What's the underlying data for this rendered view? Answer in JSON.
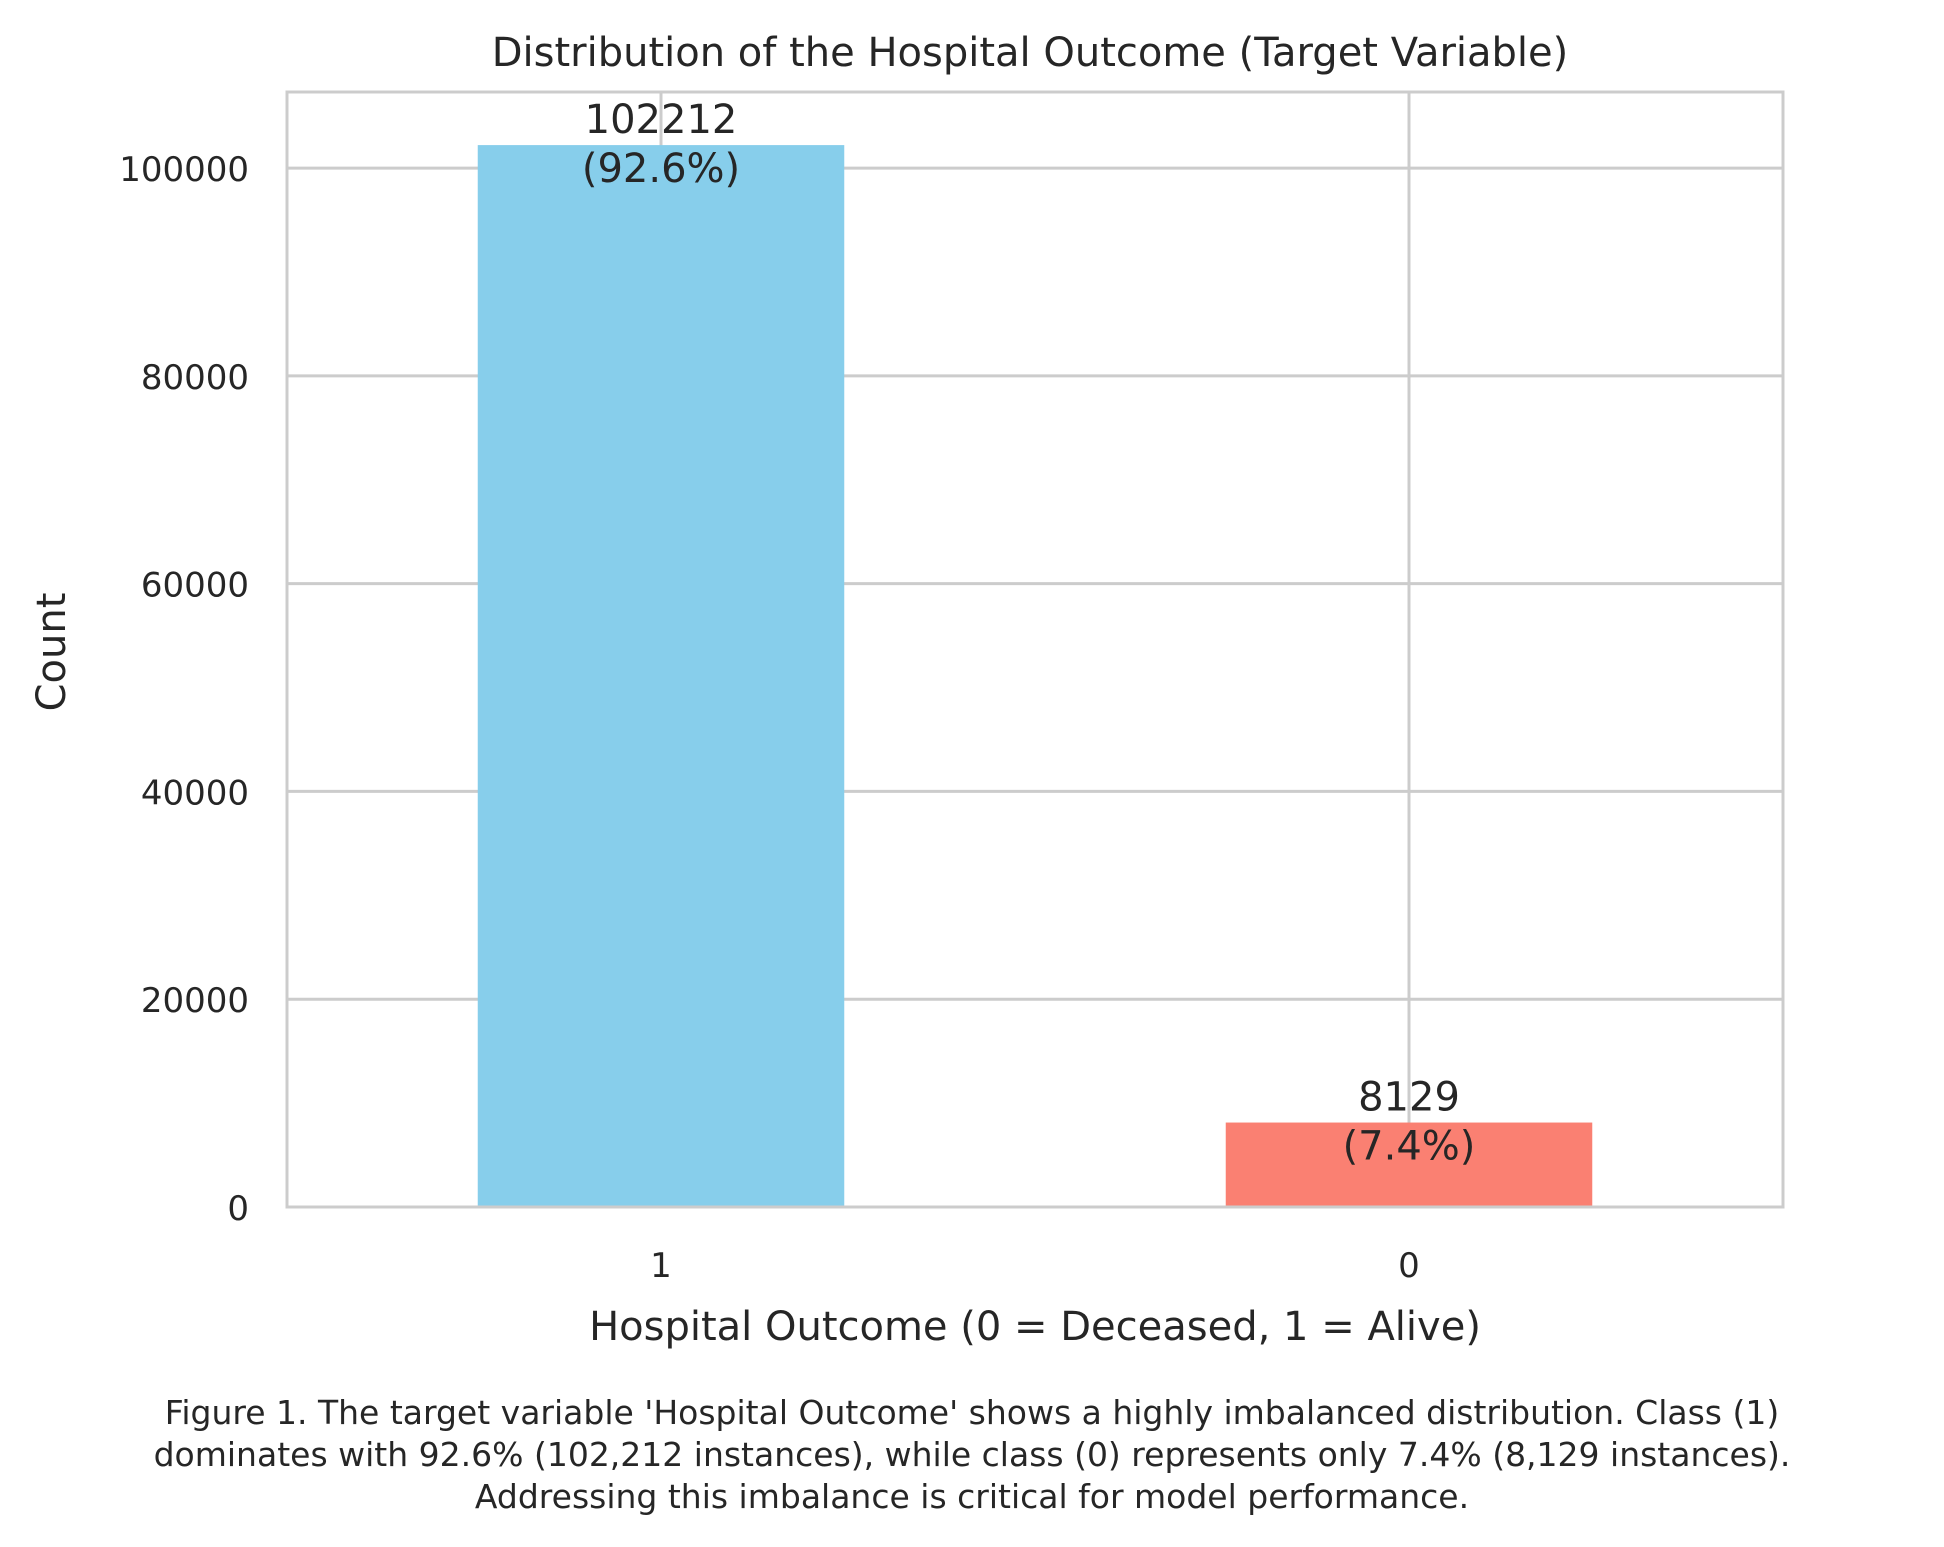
{
  "chart_data": {
    "type": "bar",
    "title": "Distribution of the Hospital Outcome (Target Variable)",
    "xlabel": "Hospital Outcome (0 = Deceased, 1 = Alive)",
    "ylabel": "Count",
    "categories": [
      "1",
      "0"
    ],
    "values": [
      102212,
      8129
    ],
    "bar_labels": [
      {
        "count": "102212",
        "percent": "(92.6%)"
      },
      {
        "count": "8129",
        "percent": "(7.4%)"
      }
    ],
    "colors": [
      "#87CEEB",
      "#FA8072"
    ],
    "ylim": [
      0,
      107323
    ],
    "yticks": [
      0,
      20000,
      40000,
      60000,
      80000,
      100000
    ],
    "ytick_labels": [
      "0",
      "20000",
      "40000",
      "60000",
      "80000",
      "100000"
    ],
    "grid": true
  },
  "caption": {
    "lines": [
      "Figure 1. The target variable 'Hospital Outcome' shows a highly imbalanced distribution. Class (1)",
      "dominates with 92.6% (102,212 instances), while class (0) represents only 7.4% (8,129 instances).",
      "Addressing this imbalance is critical for model performance."
    ]
  }
}
